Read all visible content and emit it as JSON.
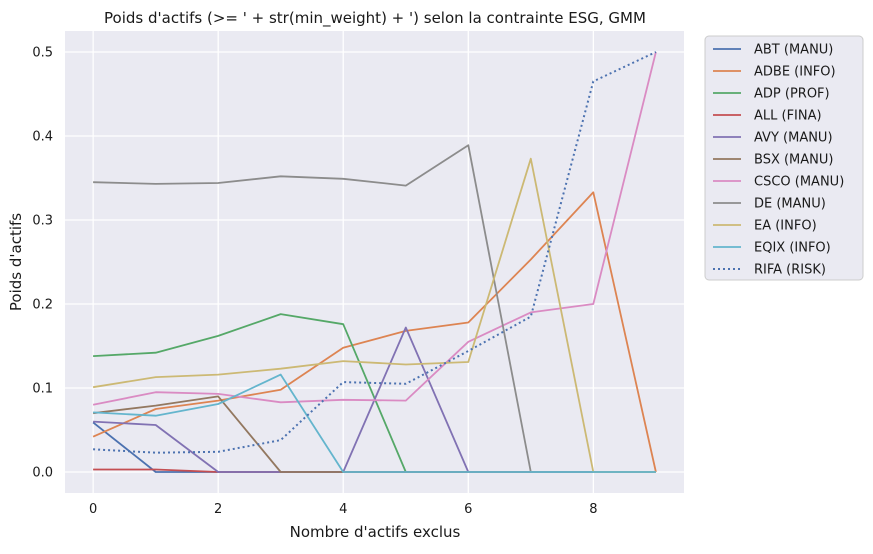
{
  "chart_data": {
    "type": "line",
    "title": "Poids d'actifs (>= ' + str(min_weight) + ') selon la contrainte ESG, GMM",
    "xlabel": "Nombre d'actifs exclus",
    "ylabel": "Poids d'actifs",
    "xlim": [
      -0.45,
      9.45
    ],
    "ylim": [
      -0.025,
      0.525
    ],
    "xticks": [
      0,
      2,
      4,
      6,
      8
    ],
    "yticks": [
      0.0,
      0.1,
      0.2,
      0.3,
      0.4,
      0.5
    ],
    "xtick_labels": [
      "0",
      "2",
      "4",
      "6",
      "8"
    ],
    "ytick_labels": [
      "0.0",
      "0.1",
      "0.2",
      "0.3",
      "0.4",
      "0.5"
    ],
    "grid": true,
    "legend_position": "outside-right",
    "x": [
      0,
      1,
      2,
      3,
      4,
      5,
      6,
      7,
      8,
      9
    ],
    "series": [
      {
        "name": "ABT (MANU)",
        "color": "#4c72b0",
        "dash": "solid",
        "values": [
          0.059,
          0.0,
          0.0,
          0.0,
          0.0,
          0.0,
          0.0,
          0.0,
          0.0,
          0.0
        ]
      },
      {
        "name": "ADBE (INFO)",
        "color": "#dd8452",
        "dash": "solid",
        "values": [
          0.042,
          0.075,
          0.085,
          0.098,
          0.148,
          0.168,
          0.178,
          0.253,
          0.333,
          0.0
        ]
      },
      {
        "name": "ADP (PROF)",
        "color": "#55a868",
        "dash": "solid",
        "values": [
          0.138,
          0.142,
          0.162,
          0.188,
          0.176,
          0.0,
          0.0,
          0.0,
          0.0,
          0.0
        ]
      },
      {
        "name": "ALL (FINA)",
        "color": "#c44e52",
        "dash": "solid",
        "values": [
          0.003,
          0.003,
          0.0,
          0.0,
          0.0,
          0.0,
          0.0,
          0.0,
          0.0,
          0.0
        ]
      },
      {
        "name": "AVY (MANU)",
        "color": "#8172b3",
        "dash": "solid",
        "values": [
          0.06,
          0.056,
          0.0,
          0.0,
          0.0,
          0.172,
          0.0,
          0.0,
          0.0,
          0.0
        ]
      },
      {
        "name": "BSX (MANU)",
        "color": "#937860",
        "dash": "solid",
        "values": [
          0.07,
          0.079,
          0.09,
          0.0,
          0.0,
          0.0,
          0.0,
          0.0,
          0.0,
          0.0
        ]
      },
      {
        "name": "CSCO (MANU)",
        "color": "#da8bc3",
        "dash": "solid",
        "values": [
          0.08,
          0.095,
          0.093,
          0.083,
          0.086,
          0.085,
          0.155,
          0.19,
          0.2,
          0.5
        ]
      },
      {
        "name": "DE (MANU)",
        "color": "#8c8c8c",
        "dash": "solid",
        "values": [
          0.345,
          0.343,
          0.344,
          0.352,
          0.349,
          0.341,
          0.389,
          0.0,
          0.0,
          0.0
        ]
      },
      {
        "name": "EA (INFO)",
        "color": "#ccb974",
        "dash": "solid",
        "values": [
          0.101,
          0.113,
          0.116,
          0.123,
          0.132,
          0.128,
          0.131,
          0.373,
          0.0,
          0.0
        ]
      },
      {
        "name": "EQIX (INFO)",
        "color": "#64b5cd",
        "dash": "solid",
        "values": [
          0.071,
          0.067,
          0.081,
          0.116,
          0.0,
          0.0,
          0.0,
          0.0,
          0.0,
          0.0
        ]
      },
      {
        "name": "RIFA (RISK)",
        "color": "#4c72b0",
        "dash": "dotted",
        "values": [
          0.027,
          0.023,
          0.024,
          0.038,
          0.107,
          0.105,
          0.144,
          0.185,
          0.465,
          0.5
        ]
      }
    ]
  }
}
